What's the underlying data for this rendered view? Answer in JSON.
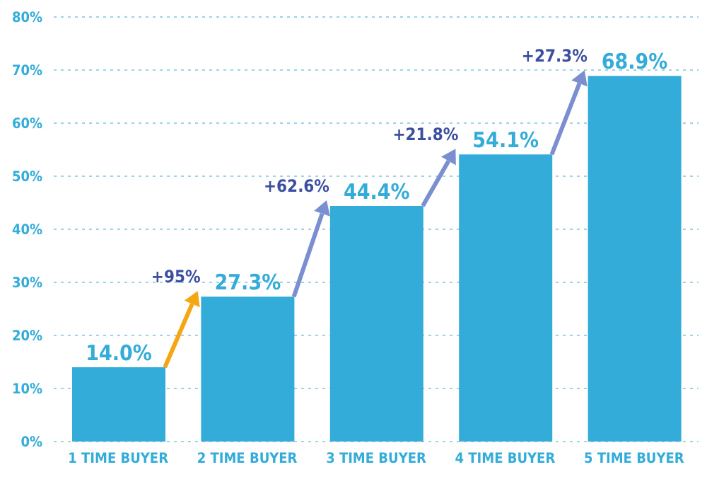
{
  "chart_data": {
    "type": "bar",
    "categories": [
      "1 TIME BUYER",
      "2 TIME BUYER",
      "3 TIME BUYER",
      "4 TIME BUYER",
      "5 TIME BUYER"
    ],
    "values": [
      14.0,
      27.3,
      44.4,
      54.1,
      68.9
    ],
    "value_labels": [
      "14.0%",
      "27.3%",
      "44.4%",
      "54.1%",
      "68.9%"
    ],
    "color": "#33acd9",
    "ylim": [
      0,
      80
    ],
    "yticks": [
      {
        "value": 0,
        "label": "0%"
      },
      {
        "value": 10,
        "label": "10%"
      },
      {
        "value": 20,
        "label": "20%"
      },
      {
        "value": 30,
        "label": "30%"
      },
      {
        "value": 40,
        "label": "40%"
      },
      {
        "value": 50,
        "label": "50%"
      },
      {
        "value": 60,
        "label": "60%"
      },
      {
        "value": 70,
        "label": "70%"
      },
      {
        "value": 80,
        "label": "80%"
      }
    ],
    "grid": "y",
    "annotations": [
      {
        "text": "+95%",
        "x": "2 TIME BUYER",
        "y": 27.3
      },
      {
        "text": "+62.6%",
        "x": "3 TIME BUYER",
        "y": 44.4
      },
      {
        "text": "+21.8%",
        "x": "4 TIME BUYER",
        "y": 54.1
      },
      {
        "text": "+27.3%",
        "x": "5 TIME BUYER",
        "y": 68.9
      }
    ]
  }
}
